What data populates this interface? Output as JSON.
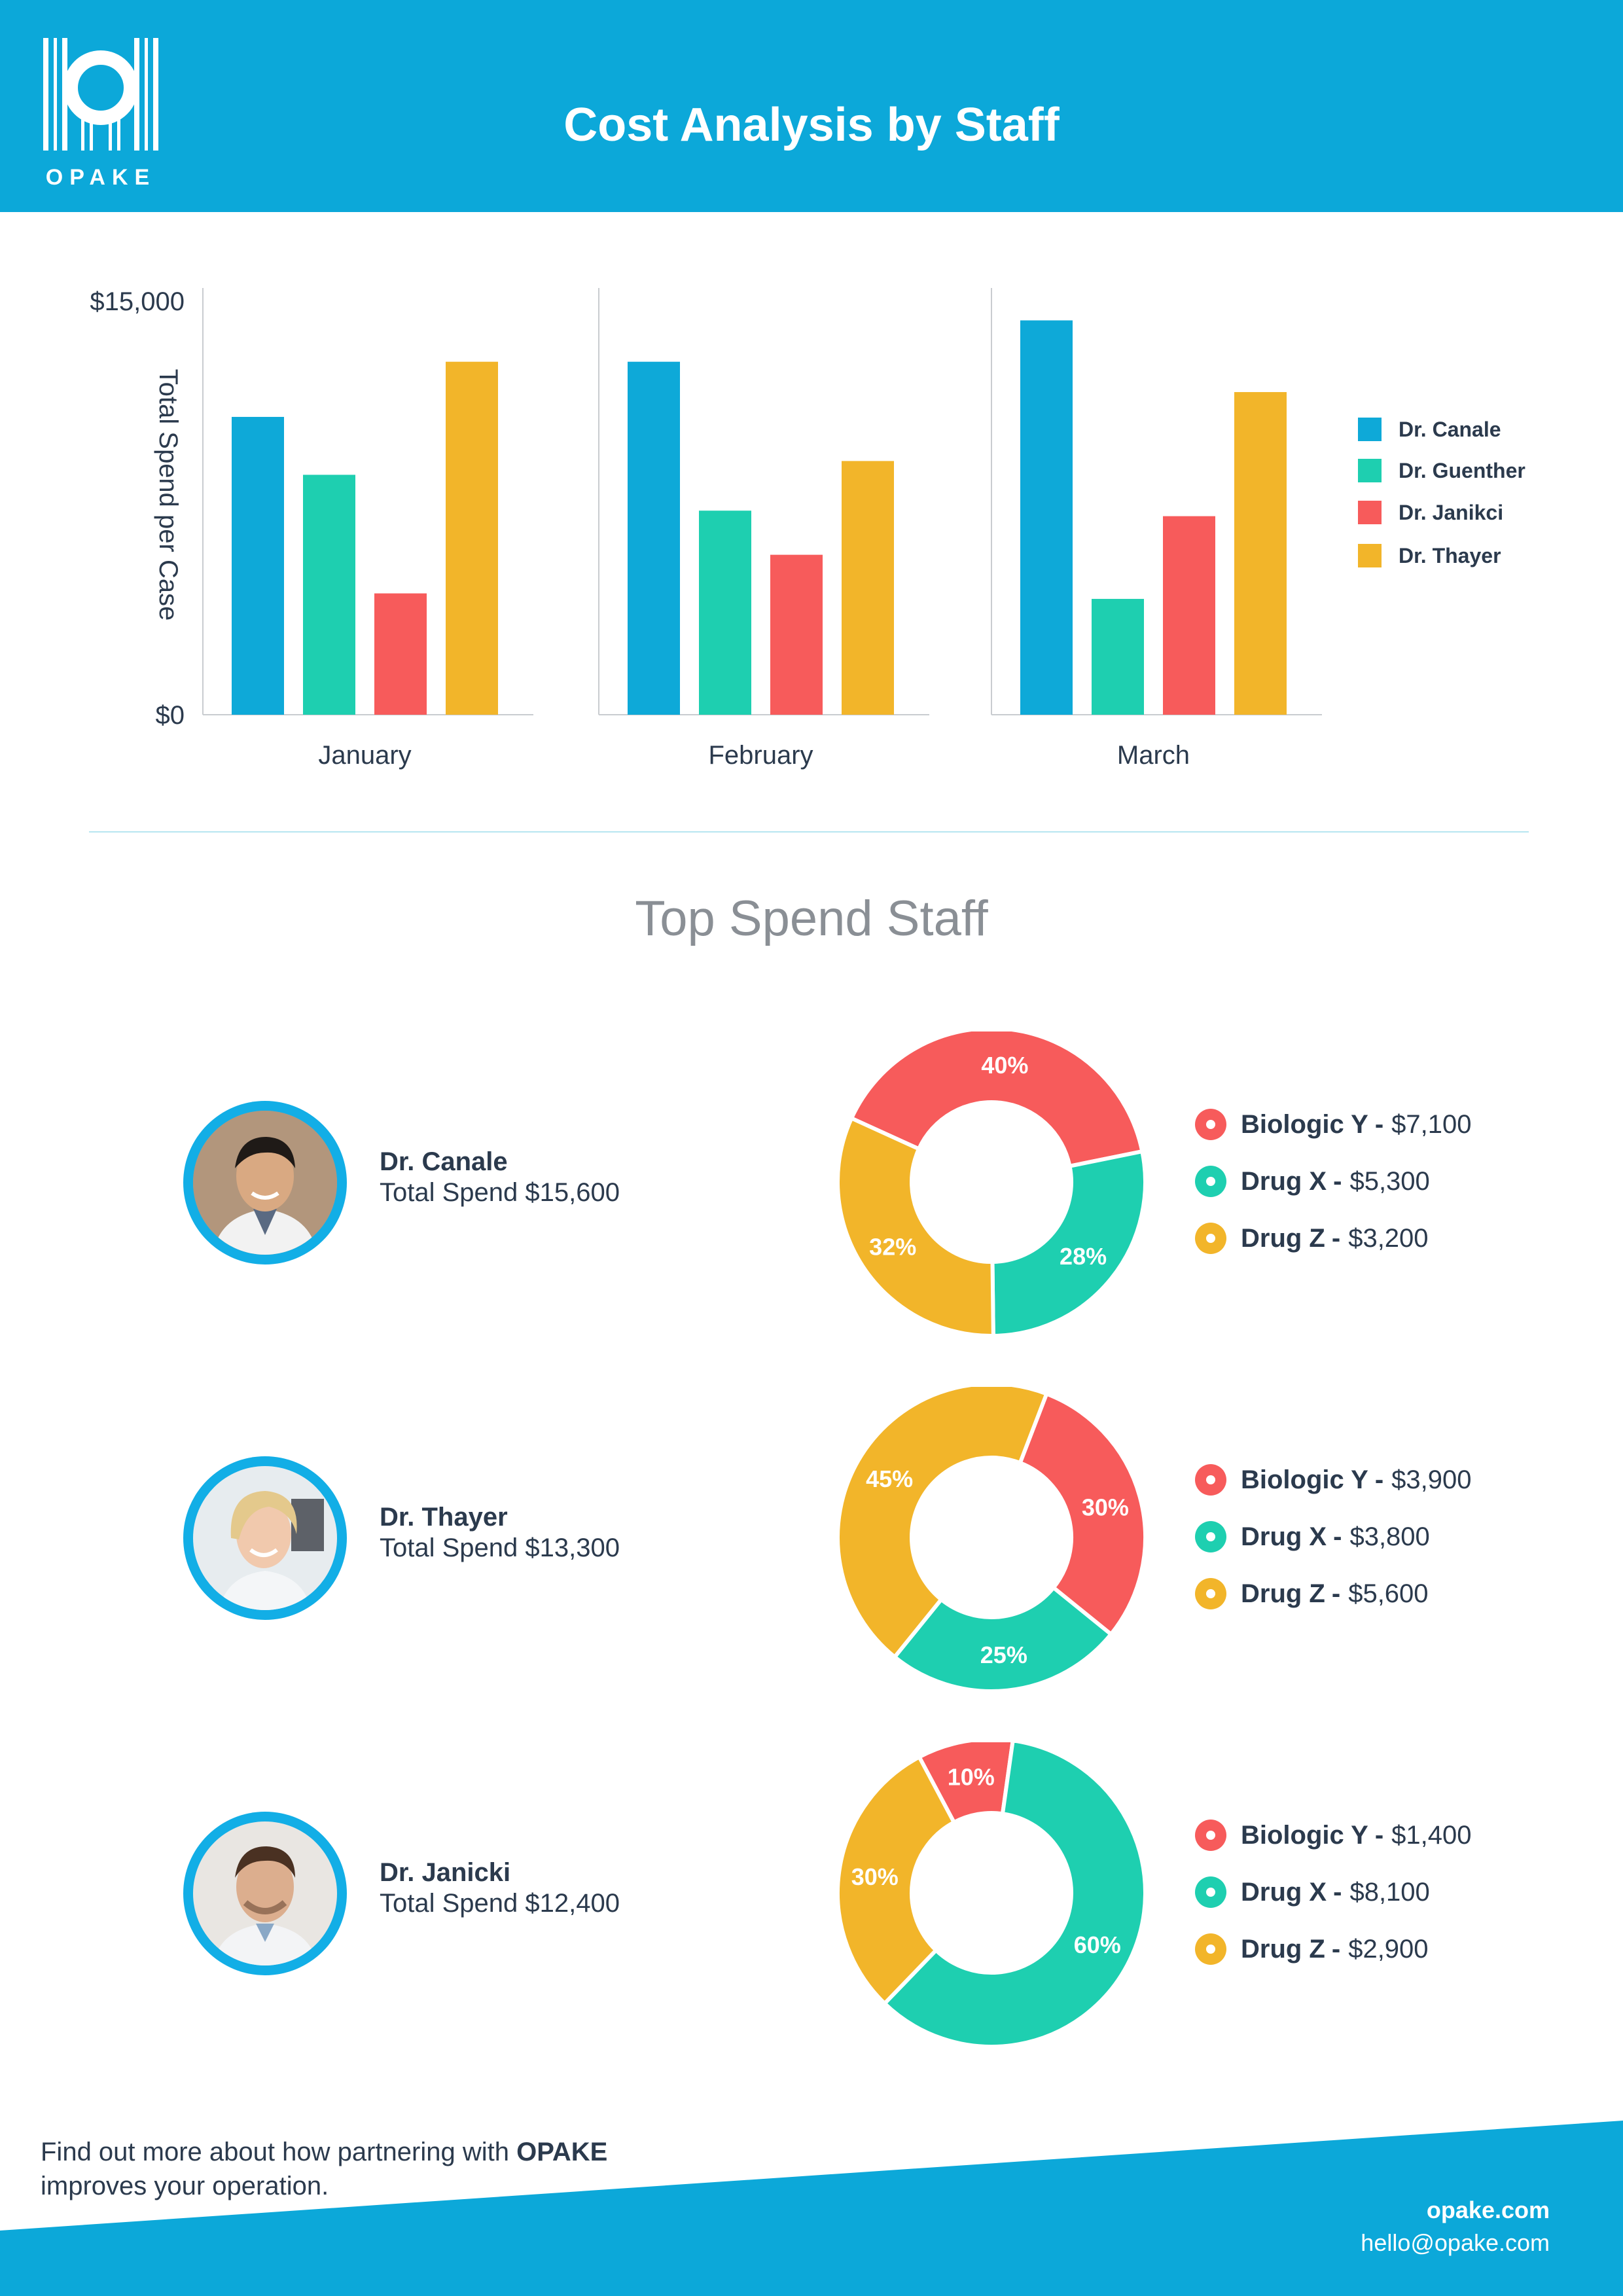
{
  "brand": {
    "logo_text": "OPAKE",
    "title": "Cost Analysis by Staff",
    "colors": {
      "header_blue": "#0ca8d9",
      "canale": "#0ea9d8",
      "guenther": "#1ecfb0",
      "janikci": "#f75b5b",
      "thayer": "#f2b52a"
    }
  },
  "chart_data": {
    "type": "bar",
    "ylabel": "Total Spend per Case",
    "ylim": [
      0,
      15000
    ],
    "yticks": [
      "$15,000",
      "$0"
    ],
    "categories": [
      "January",
      "February",
      "March"
    ],
    "series": [
      {
        "name": "Dr. Canale",
        "color": "#0ea9d8",
        "values": [
          10800,
          12800,
          14300
        ]
      },
      {
        "name": "Dr. Guenther",
        "color": "#1ecfb0",
        "values": [
          8700,
          7400,
          4200
        ]
      },
      {
        "name": "Dr. Janikci",
        "color": "#f75b5b",
        "values": [
          4400,
          5800,
          7200
        ]
      },
      {
        "name": "Dr. Thayer",
        "color": "#f2b52a",
        "values": [
          12800,
          9200,
          11700
        ]
      }
    ],
    "legend_position": "right"
  },
  "section_title": "Top Spend Staff",
  "staff": [
    {
      "name": "Dr. Canale",
      "total": "Total Spend $15,600",
      "avatar": "man-portrait-icon",
      "donut": [
        {
          "label": "Biologic Y",
          "amount": "$7,100",
          "pct": "40%",
          "value": 40,
          "color": "#f75b5b"
        },
        {
          "label": "Drug X",
          "amount": "$5,300",
          "pct": "28%",
          "value": 28,
          "color": "#1ecfb0"
        },
        {
          "label": "Drug Z",
          "amount": "$3,200",
          "pct": "32%",
          "value": 32,
          "color": "#f2b52a"
        }
      ]
    },
    {
      "name": "Dr. Thayer",
      "total": "Total Spend $13,300",
      "avatar": "woman-portrait-icon",
      "donut": [
        {
          "label": "Biologic Y",
          "amount": "$3,900",
          "pct": "30%",
          "value": 30,
          "color": "#f75b5b"
        },
        {
          "label": "Drug X",
          "amount": "$3,800",
          "pct": "25%",
          "value": 25,
          "color": "#1ecfb0"
        },
        {
          "label": "Drug Z",
          "amount": "$5,600",
          "pct": "45%",
          "value": 45,
          "color": "#f2b52a"
        }
      ]
    },
    {
      "name": "Dr. Janicki",
      "total": "Total Spend $12,400",
      "avatar": "man-portrait-icon",
      "donut": [
        {
          "label": "Biologic Y",
          "amount": "$1,400",
          "pct": "10%",
          "value": 10,
          "color": "#f75b5b"
        },
        {
          "label": "Drug X",
          "amount": "$8,100",
          "pct": "60%",
          "value": 60,
          "color": "#1ecfb0"
        },
        {
          "label": "Drug Z",
          "amount": "$2,900",
          "pct": "30%",
          "value": 30,
          "color": "#f2b52a"
        }
      ]
    }
  ],
  "footer": {
    "text_before": "Find out more about how partnering with ",
    "brand": "OPAKE",
    "text_after": "improves your operation.",
    "site": "opake.com",
    "email": "hello@opake.com"
  }
}
